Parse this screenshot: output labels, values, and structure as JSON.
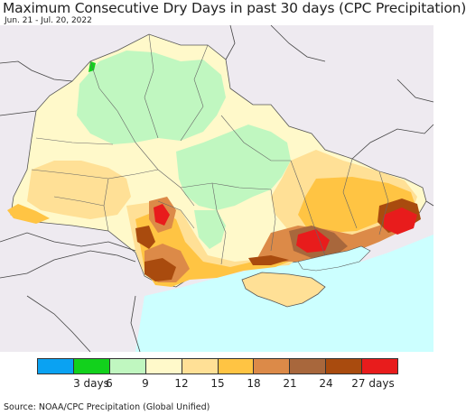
{
  "header": {
    "title": "Maximum Consecutive Dry Days in past 30 days (CPC Precipitation)",
    "subtitle": "Jun. 21 - Jul. 20, 2022"
  },
  "legend": {
    "colors": [
      "#0aa2f2",
      "#12d11c",
      "#c0f7c0",
      "#fff9ca",
      "#ffe096",
      "#ffc443",
      "#dc8a48",
      "#a8673c",
      "#a94b0e",
      "#e81c1c"
    ],
    "labels": [
      {
        "text": "3 days",
        "boundary": 1.5
      },
      {
        "text": "6",
        "boundary": 2
      },
      {
        "text": "9",
        "boundary": 3
      },
      {
        "text": "12",
        "boundary": 4
      },
      {
        "text": "15",
        "boundary": 5
      },
      {
        "text": "18",
        "boundary": 6
      },
      {
        "text": "21",
        "boundary": 7
      },
      {
        "text": "24",
        "boundary": 8
      },
      {
        "text": "27 days",
        "boundary": 9.3
      }
    ]
  },
  "source": "Source: NOAA/CPC Precipitation (Global Unified)"
}
